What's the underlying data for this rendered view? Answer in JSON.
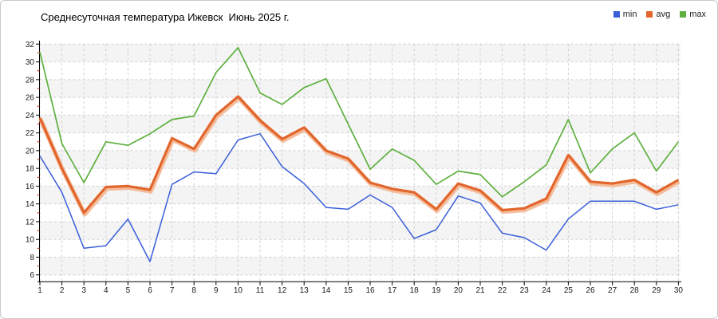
{
  "chart_data": {
    "type": "line",
    "title": "Среднесуточная температура Ижевск  Июнь 2025 г.",
    "x": [
      1,
      2,
      3,
      4,
      5,
      6,
      7,
      8,
      9,
      10,
      11,
      12,
      13,
      14,
      15,
      16,
      17,
      18,
      19,
      20,
      21,
      22,
      23,
      24,
      25,
      26,
      27,
      28,
      29,
      30
    ],
    "ylim": [
      6,
      32
    ],
    "ytick_step": 2,
    "grid": "dashed",
    "legend_position": "top-right",
    "band_color": "#f4f4f4",
    "axis_color": "#000000",
    "grid_color": "#cfcfcf",
    "minor_tick_color": "#c03028",
    "series": [
      {
        "name": "min",
        "color": "#3a5fd9",
        "values": [
          19.4,
          15.3,
          9.0,
          9.3,
          12.3,
          7.5,
          16.2,
          17.6,
          17.4,
          21.2,
          21.9,
          18.2,
          16.3,
          13.6,
          13.4,
          15.0,
          13.6,
          10.1,
          11.1,
          14.9,
          14.1,
          10.7,
          10.2,
          8.8,
          12.3,
          14.3,
          14.3,
          14.3,
          13.4,
          13.9
        ]
      },
      {
        "name": "avg",
        "color": "#e2662c",
        "values": [
          23.7,
          18.0,
          13.0,
          15.9,
          16.0,
          15.6,
          21.4,
          20.2,
          24.0,
          26.1,
          23.4,
          21.3,
          22.6,
          20.0,
          19.1,
          16.4,
          15.7,
          15.3,
          13.4,
          16.3,
          15.5,
          13.3,
          13.5,
          14.6,
          19.5,
          16.5,
          16.3,
          16.7,
          15.3,
          16.7
        ]
      },
      {
        "name": "max",
        "color": "#5eb03f",
        "values": [
          31.1,
          20.8,
          16.4,
          21.0,
          20.6,
          21.9,
          23.5,
          23.9,
          28.8,
          31.6,
          26.5,
          25.2,
          27.1,
          28.1,
          23.0,
          17.9,
          20.2,
          18.9,
          16.2,
          17.7,
          17.3,
          14.8,
          16.5,
          18.4,
          23.5,
          17.5,
          20.2,
          22.0,
          17.7,
          21.0
        ]
      }
    ]
  }
}
